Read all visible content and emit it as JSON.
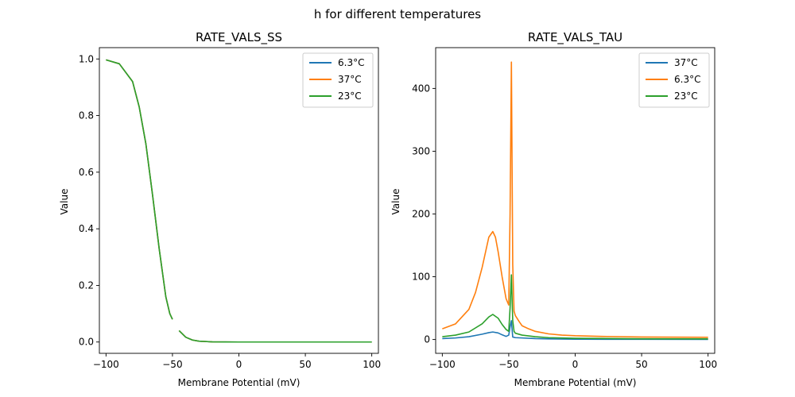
{
  "suptitle": "h for different temperatures",
  "chart_data": [
    {
      "type": "line",
      "title": "RATE_VALS_SS",
      "xlabel": "Membrane Potential (mV)",
      "ylabel": "Value",
      "xlim": [
        -105,
        105
      ],
      "ylim": [
        -0.04,
        1.04
      ],
      "xticks": [
        -100,
        -50,
        0,
        50,
        100
      ],
      "yticks": [
        0.0,
        0.2,
        0.4,
        0.6,
        0.8,
        1.0
      ],
      "ytick_format": 1,
      "grid": false,
      "legend_placement": "top-right",
      "series": [
        {
          "name": "6.3°C",
          "color": "#1f77b4",
          "x": [
            -100,
            -90,
            -80,
            -75,
            -70,
            -65,
            -60,
            -55,
            -52,
            -50,
            -48,
            -45,
            -40,
            -35,
            -30,
            -20,
            -10,
            0,
            50,
            100
          ],
          "y": [
            0.997,
            0.983,
            0.92,
            0.83,
            0.7,
            0.52,
            0.33,
            0.16,
            0.1,
            0.08,
            null,
            0.04,
            0.017,
            0.007,
            0.003,
            0.0005,
            0.0001,
            0,
            0,
            0
          ]
        },
        {
          "name": "37°C",
          "color": "#ff7f0e",
          "x": [
            -100,
            -90,
            -80,
            -75,
            -70,
            -65,
            -60,
            -55,
            -52,
            -50,
            -48,
            -45,
            -40,
            -35,
            -30,
            -20,
            -10,
            0,
            50,
            100
          ],
          "y": [
            0.997,
            0.983,
            0.92,
            0.83,
            0.7,
            0.52,
            0.33,
            0.16,
            0.1,
            0.08,
            null,
            0.04,
            0.017,
            0.007,
            0.003,
            0.0005,
            0.0001,
            0,
            0,
            0
          ]
        },
        {
          "name": "23°C",
          "color": "#2ca02c",
          "x": [
            -100,
            -90,
            -80,
            -75,
            -70,
            -65,
            -60,
            -55,
            -52,
            -50,
            -48,
            -45,
            -40,
            -35,
            -30,
            -20,
            -10,
            0,
            50,
            100
          ],
          "y": [
            0.997,
            0.983,
            0.92,
            0.83,
            0.7,
            0.52,
            0.33,
            0.16,
            0.1,
            0.08,
            null,
            0.04,
            0.017,
            0.007,
            0.003,
            0.0005,
            0.0001,
            0,
            0,
            0
          ]
        }
      ]
    },
    {
      "type": "line",
      "title": "RATE_VALS_TAU",
      "xlabel": "Membrane Potential (mV)",
      "ylabel": "Value",
      "xlim": [
        -105,
        105
      ],
      "ylim": [
        -22,
        465
      ],
      "xticks": [
        -100,
        -50,
        0,
        50,
        100
      ],
      "yticks": [
        0,
        100,
        200,
        300,
        400
      ],
      "ytick_format": 0,
      "grid": false,
      "legend_placement": "top-right",
      "series": [
        {
          "name": "37°C",
          "color": "#1f77b4",
          "x": [
            -100,
            -90,
            -80,
            -70,
            -65,
            -62,
            -58,
            -55,
            -52,
            -50,
            -49,
            -48,
            -47,
            -45,
            -40,
            -30,
            -20,
            0,
            50,
            100
          ],
          "y": [
            1.5,
            2.5,
            4.5,
            8.5,
            11,
            12,
            10.5,
            7.5,
            5,
            7,
            20,
            30,
            4,
            3,
            2.5,
            1.5,
            1,
            0.5,
            0.3,
            0.2
          ]
        },
        {
          "name": "6.3°C",
          "color": "#ff7f0e",
          "x": [
            -100,
            -90,
            -80,
            -75,
            -70,
            -65,
            -62,
            -60,
            -58,
            -55,
            -52,
            -50,
            -49,
            -48,
            -47,
            -46,
            -45,
            -42,
            -40,
            -35,
            -30,
            -20,
            -10,
            0,
            20,
            50,
            100
          ],
          "y": [
            17,
            25,
            48,
            75,
            115,
            163,
            172,
            163,
            140,
            100,
            65,
            55,
            200,
            442,
            120,
            45,
            38,
            28,
            22,
            17,
            13,
            9,
            7,
            6,
            5,
            4,
            3.5
          ]
        },
        {
          "name": "23°C",
          "color": "#2ca02c",
          "x": [
            -100,
            -90,
            -80,
            -70,
            -65,
            -62,
            -58,
            -55,
            -52,
            -50,
            -49,
            -48,
            -47,
            -46,
            -45,
            -40,
            -30,
            -20,
            0,
            50,
            100
          ],
          "y": [
            4.5,
            7,
            12,
            25,
            36,
            40,
            34,
            24,
            16,
            13,
            50,
            103,
            30,
            13,
            10,
            7,
            4.5,
            3,
            2,
            1.2,
            1
          ]
        }
      ]
    }
  ]
}
